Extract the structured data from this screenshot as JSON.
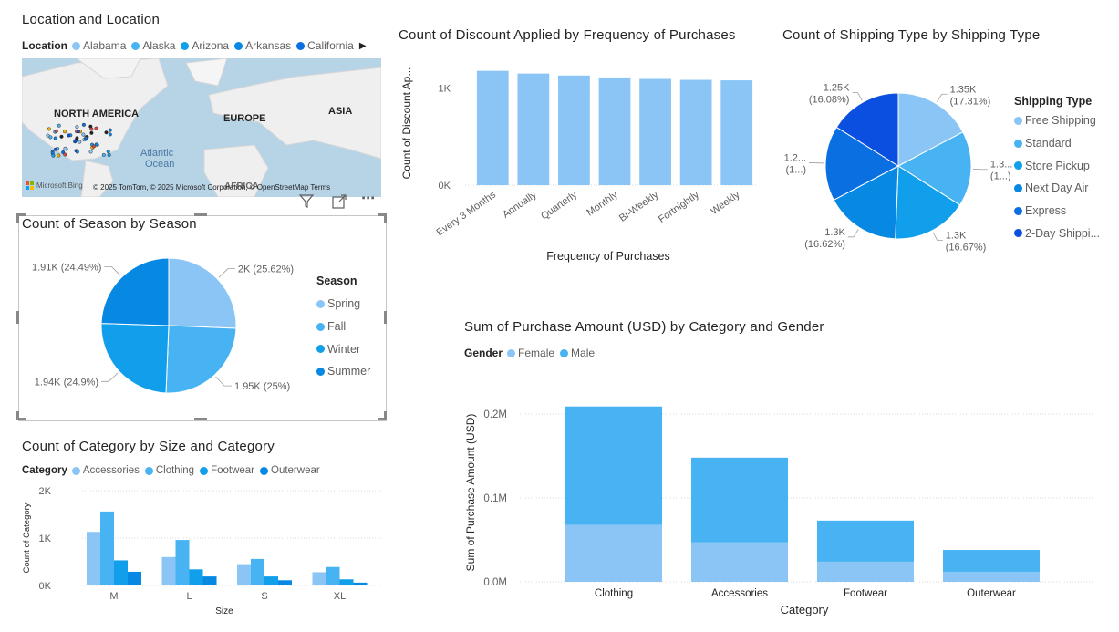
{
  "colors": {
    "c1": "#8ac5f6",
    "c2": "#47b3f2",
    "c3": "#119fec",
    "c4": "#0788e3",
    "c5": "#0a6fe0",
    "c6": "#0b4fe0",
    "grid": "#d9d9d9",
    "text": "#605e5c"
  },
  "map_visual": {
    "title": "Location and Location",
    "legend_title": "Location",
    "legend_items": [
      {
        "label": "Alabama",
        "color": "#8ac5f6"
      },
      {
        "label": "Alaska",
        "color": "#47b3f2"
      },
      {
        "label": "Arizona",
        "color": "#119fec"
      },
      {
        "label": "Arkansas",
        "color": "#0788e3"
      },
      {
        "label": "California",
        "color": "#0a6fe0"
      }
    ],
    "next_arrow": "▶",
    "labels": {
      "north_america": "NORTH AMERICA",
      "europe": "EUROPE",
      "asia": "ASIA",
      "ocean1": "Atlantic",
      "ocean2": "Ocean",
      "africa": "AFRICA"
    },
    "attribution_left": "Microsoft Bing",
    "attribution_right": "© 2025 TomTom, © 2025 Microsoft Corporation, © OpenStreetMap   Terms",
    "icons": [
      "filter-icon",
      "focus-mode-icon",
      "more-options-icon"
    ]
  },
  "season_chart": {
    "chart_data": {
      "type": "pie",
      "title": "Count of Season by Season",
      "legend_title": "Season",
      "slices": [
        {
          "label": "Spring",
          "value": 2000,
          "display": "2K (25.62%)",
          "color": "#8ac5f6"
        },
        {
          "label": "Fall",
          "value": 1950,
          "display": "1.95K (25%)",
          "color": "#47b3f2"
        },
        {
          "label": "Winter",
          "value": 1940,
          "display": "1.94K (24.9%)",
          "color": "#119fec"
        },
        {
          "label": "Summer",
          "value": 1910,
          "display": "1.91K (24.49%)",
          "color": "#0788e3"
        }
      ]
    }
  },
  "discount_chart": {
    "chart_data": {
      "type": "bar",
      "title": "Count of Discount Applied by Frequency of Purchases",
      "xlabel": "Frequency of Purchases",
      "ylabel": "Count of Discount Ap...",
      "categories": [
        "Every 3 Months",
        "Annually",
        "Quarterly",
        "Monthly",
        "Bi-Weekly",
        "Fortnightly",
        "Weekly"
      ],
      "values": [
        1178,
        1150,
        1130,
        1110,
        1095,
        1085,
        1080
      ],
      "yticks": [
        {
          "v": 0,
          "label": "0K"
        },
        {
          "v": 1000,
          "label": "1K"
        }
      ],
      "ylim": [
        0,
        1250
      ],
      "color": "#8ac5f6"
    }
  },
  "shipping_chart": {
    "chart_data": {
      "type": "pie",
      "title": "Count of Shipping Type by Shipping Type",
      "legend_title": "Shipping Type",
      "slices": [
        {
          "label": "Free Shipping",
          "value": 17.31,
          "l1": "1.35K",
          "l2": "(17.31%)",
          "color": "#8ac5f6"
        },
        {
          "label": "Standard",
          "value": 16.67,
          "l1": "1.3...",
          "l2": "(1...)",
          "color": "#47b3f2"
        },
        {
          "label": "Store Pickup",
          "value": 16.67,
          "l1": "1.3K",
          "l2": "(16.67%)",
          "color": "#119fec"
        },
        {
          "label": "Next Day Air",
          "value": 16.62,
          "l1": "1.3K",
          "l2": "(16.62%)",
          "color": "#0788e3"
        },
        {
          "label": "Express",
          "value": 16.65,
          "l1": "1.2...",
          "l2": "(1...)",
          "color": "#0a6fe0"
        },
        {
          "label": "2-Day Shippi...",
          "value": 16.08,
          "l1": "1.25K",
          "l2": "(16.08%)",
          "color": "#0b4fe0"
        }
      ]
    }
  },
  "category_size_chart": {
    "chart_data": {
      "type": "bar",
      "title": "Count of Category by Size and Category",
      "legend_title": "Category",
      "xlabel": "Size",
      "ylabel": "Count of Category",
      "categories": [
        "M",
        "L",
        "S",
        "XL"
      ],
      "series": [
        {
          "name": "Accessories",
          "values": [
            1130,
            600,
            450,
            280
          ],
          "color": "#8ac5f6"
        },
        {
          "name": "Clothing",
          "values": [
            1560,
            960,
            560,
            390
          ],
          "color": "#47b3f2"
        },
        {
          "name": "Footwear",
          "values": [
            530,
            340,
            190,
            130
          ],
          "color": "#119fec"
        },
        {
          "name": "Outerwear",
          "values": [
            290,
            190,
            110,
            60
          ],
          "color": "#0788e3"
        }
      ],
      "yticks": [
        {
          "v": 0,
          "label": "0K"
        },
        {
          "v": 1000,
          "label": "1K"
        },
        {
          "v": 2000,
          "label": "2K"
        }
      ],
      "ylim": [
        0,
        2000
      ]
    }
  },
  "purchase_chart": {
    "chart_data": {
      "type": "bar",
      "stacked": true,
      "title": "Sum of Purchase Amount (USD) by Category and Gender",
      "legend_title": "Gender",
      "xlabel": "Category",
      "ylabel": "Sum of Purchase Amount (USD)",
      "categories": [
        "Clothing",
        "Accessories",
        "Footwear",
        "Outerwear"
      ],
      "series": [
        {
          "name": "Female",
          "values": [
            68000,
            47000,
            24000,
            12000
          ],
          "color": "#8ac5f6"
        },
        {
          "name": "Male",
          "values": [
            141000,
            101000,
            49000,
            26000
          ],
          "color": "#47b3f2"
        }
      ],
      "yticks": [
        {
          "v": 0,
          "label": "0.0M"
        },
        {
          "v": 100000,
          "label": "0.1M"
        },
        {
          "v": 200000,
          "label": "0.2M"
        }
      ],
      "ylim": [
        0,
        200000
      ]
    }
  }
}
